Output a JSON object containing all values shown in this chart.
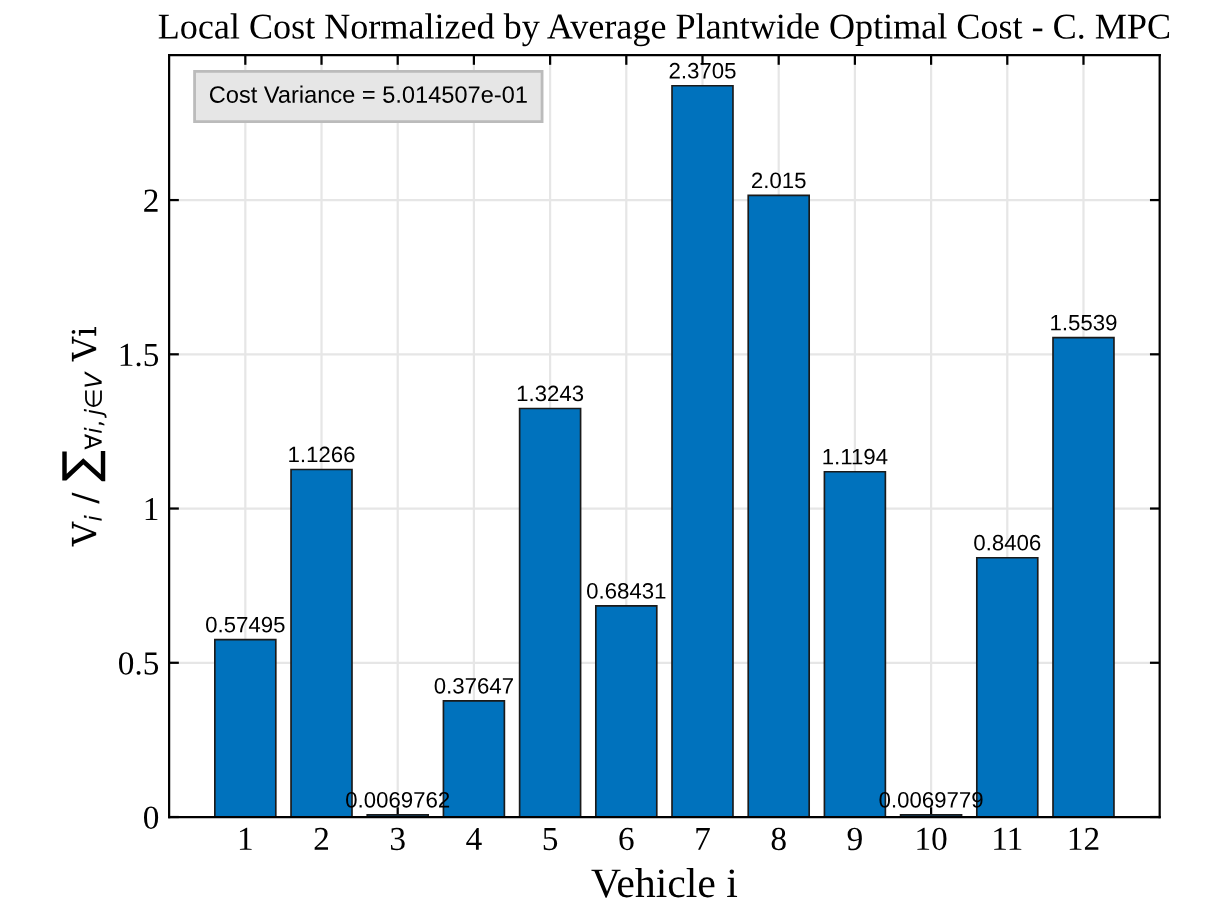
{
  "chart_data": {
    "type": "bar",
    "title": "Local Cost Normalized by Average Plantwide Optimal Cost - C. MPC",
    "xlabel": "Vehicle i",
    "ylabel": "V$_{i}$ / ∑$_{∀i,j∈V}$ Vi",
    "categories": [
      "1",
      "2",
      "3",
      "4",
      "5",
      "6",
      "7",
      "8",
      "9",
      "10",
      "11",
      "12"
    ],
    "values": [
      0.57495,
      1.1266,
      0.0069762,
      0.37647,
      1.3243,
      0.68431,
      2.3705,
      2.015,
      1.1194,
      0.0069779,
      0.8406,
      1.5539
    ],
    "color": "#0072bd",
    "data_labels": true,
    "ylim": [
      0,
      2.47
    ],
    "yticks": [
      0,
      0.5,
      1,
      1.5,
      2
    ],
    "grid": true,
    "annotations": [
      "Cost Variance = 5.014507e-01"
    ]
  }
}
